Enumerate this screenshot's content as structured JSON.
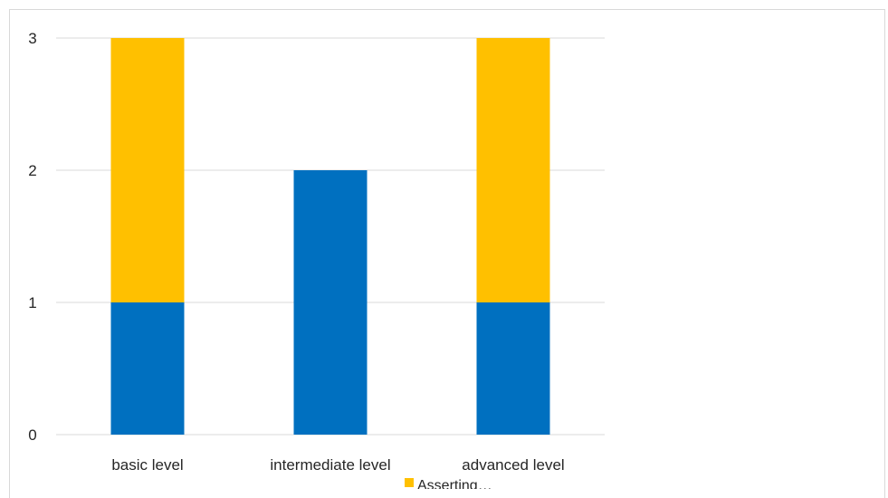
{
  "chart_data": {
    "type": "bar",
    "stacked": true,
    "categories": [
      "basic level",
      "intermediate level",
      "advanced level"
    ],
    "series": [
      {
        "values": [
          1,
          2,
          1
        ],
        "color": "#0070C0"
      },
      {
        "name": "Asserting…",
        "values": [
          2,
          0,
          2
        ],
        "color": "#FFC000"
      }
    ],
    "title": "",
    "xlabel": "",
    "ylabel": "",
    "ylim": [
      0,
      3
    ],
    "yticks": [
      "0",
      "1",
      "2",
      "3"
    ],
    "grid": true,
    "legend": {
      "placement": "bottom",
      "entries": [
        "Asserting…"
      ]
    }
  }
}
